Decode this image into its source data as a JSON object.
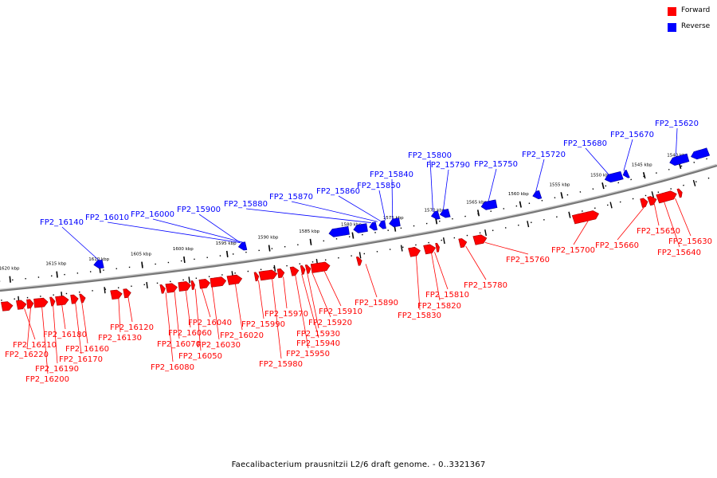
{
  "legend": [
    {
      "label": "Forward",
      "color": "#ff0000"
    },
    {
      "label": "Reverse",
      "color": "#0000ff"
    }
  ],
  "colors": {
    "forward": "#ff0000",
    "reverse": "#0000ff",
    "backbone": "#777777"
  },
  "caption": "Faecalibacterium prausnitzii L2/6 draft genome. - 0..3321367",
  "ticks": [
    "1620 kbp",
    "1615 kbp",
    "1610 kbp",
    "1605 kbp",
    "1600 kbp",
    "1595 kbp",
    "1590 kbp",
    "1585 kbp",
    "1580 kbp",
    "1575 kbp",
    "1570 kbp",
    "1565 kbp",
    "1560 kbp",
    "1555 kbp",
    "1550 kbp",
    "1545 kbp",
    "1540 kbp"
  ],
  "reverse_genes": [
    "FP2_16140",
    "FP2_16010",
    "FP2_16000",
    "FP2_15900",
    "FP2_15880",
    "FP2_15870",
    "FP2_15860",
    "FP2_15850",
    "FP2_15840",
    "FP2_15800",
    "FP2_15790",
    "FP2_15750",
    "FP2_15720",
    "FP2_15680",
    "FP2_15670",
    "FP2_15620"
  ],
  "forward_genes": [
    "FP2_16210",
    "FP2_16220",
    "FP2_16200",
    "FP2_16190",
    "FP2_16180",
    "FP2_16170",
    "FP2_16160",
    "FP2_16130",
    "FP2_16120",
    "FP2_16080",
    "FP2_16070",
    "FP2_16060",
    "FP2_16050",
    "FP2_16040",
    "FP2_16030",
    "FP2_16020",
    "FP2_15990",
    "FP2_15980",
    "FP2_15970",
    "FP2_15950",
    "FP2_15940",
    "FP2_15930",
    "FP2_15920",
    "FP2_15910",
    "FP2_15890",
    "FP2_15830",
    "FP2_15820",
    "FP2_15810",
    "FP2_15780",
    "FP2_15760",
    "FP2_15700",
    "FP2_15660",
    "FP2_15650",
    "FP2_15640",
    "FP2_15630"
  ]
}
